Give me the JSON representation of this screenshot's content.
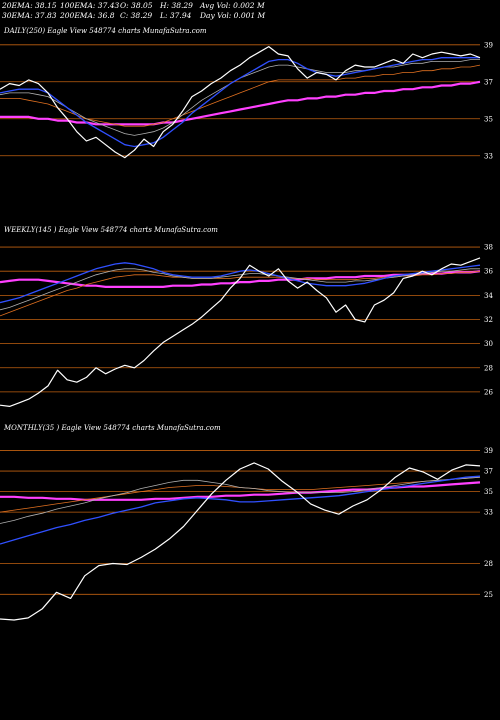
{
  "header": {
    "row1": [
      "20EMA: 38.15",
      "100EMA: 37.43",
      "O: 38.05",
      "H: 38.29",
      "Avg Vol: 0.002  M"
    ],
    "row2": [
      "30EMA: 37.83",
      "200EMA: 36.8",
      "C: 38.29",
      "L: 37.94",
      "Day Vol: 0.001 M"
    ]
  },
  "colors": {
    "price": "#ffffff",
    "ema_fast": "#3050ff",
    "ema_slow": "#ff40ff",
    "ma_a": "#b0b0b0",
    "ma_b": "#e07020",
    "grid": "#c06010"
  },
  "chart_data": [
    {
      "type": "line",
      "title": "DAILY(250) Eagle  View  548774  charts MunafaSutra.com",
      "yticks": [
        39,
        37,
        35,
        33
      ],
      "ylim": [
        32.5,
        39.8
      ],
      "series": [
        {
          "key": "price",
          "values": [
            36.6,
            36.9,
            36.8,
            37.1,
            36.9,
            36.4,
            35.6,
            35.0,
            34.3,
            33.8,
            34.0,
            33.6,
            33.2,
            32.9,
            33.3,
            33.9,
            33.5,
            34.3,
            34.7,
            35.4,
            36.2,
            36.5,
            36.9,
            37.2,
            37.6,
            37.9,
            38.3,
            38.6,
            38.9,
            38.5,
            38.4,
            37.7,
            37.2,
            37.5,
            37.4,
            37.1,
            37.6,
            37.9,
            37.8,
            37.8,
            38.0,
            38.2,
            38.0,
            38.5,
            38.3,
            38.5,
            38.6,
            38.5,
            38.4,
            38.5,
            38.3
          ]
        },
        {
          "key": "ema_fast",
          "values": [
            36.4,
            36.5,
            36.6,
            36.6,
            36.6,
            36.4,
            36.0,
            35.6,
            35.2,
            34.8,
            34.5,
            34.2,
            33.9,
            33.6,
            33.5,
            33.6,
            33.7,
            34.0,
            34.4,
            34.8,
            35.3,
            35.7,
            36.1,
            36.5,
            36.9,
            37.2,
            37.5,
            37.8,
            38.1,
            38.2,
            38.2,
            38.0,
            37.7,
            37.5,
            37.4,
            37.3,
            37.4,
            37.5,
            37.6,
            37.7,
            37.8,
            37.9,
            38.0,
            38.1,
            38.2,
            38.2,
            38.3,
            38.3,
            38.3,
            38.3,
            38.3
          ]
        },
        {
          "key": "ma_a",
          "values": [
            36.3,
            36.4,
            36.4,
            36.4,
            36.3,
            36.2,
            35.9,
            35.6,
            35.3,
            35.0,
            34.8,
            34.6,
            34.4,
            34.2,
            34.1,
            34.2,
            34.3,
            34.5,
            34.8,
            35.2,
            35.6,
            36.0,
            36.3,
            36.6,
            36.9,
            37.2,
            37.4,
            37.6,
            37.8,
            37.9,
            37.9,
            37.8,
            37.7,
            37.6,
            37.5,
            37.5,
            37.5,
            37.6,
            37.6,
            37.7,
            37.8,
            37.8,
            37.9,
            38.0,
            38.0,
            38.1,
            38.1,
            38.1,
            38.1,
            38.2,
            38.2
          ]
        },
        {
          "key": "ma_b",
          "values": [
            36.1,
            36.1,
            36.1,
            36.0,
            35.9,
            35.8,
            35.6,
            35.4,
            35.2,
            35.0,
            34.9,
            34.8,
            34.7,
            34.6,
            34.6,
            34.6,
            34.7,
            34.8,
            35.0,
            35.2,
            35.4,
            35.6,
            35.8,
            36.0,
            36.2,
            36.4,
            36.6,
            36.8,
            37.0,
            37.1,
            37.1,
            37.1,
            37.1,
            37.1,
            37.1,
            37.1,
            37.2,
            37.2,
            37.3,
            37.3,
            37.4,
            37.4,
            37.5,
            37.5,
            37.6,
            37.6,
            37.7,
            37.7,
            37.8,
            37.8,
            37.9
          ]
        },
        {
          "key": "ema_slow",
          "values": [
            35.1,
            35.1,
            35.1,
            35.1,
            35.0,
            35.0,
            34.9,
            34.9,
            34.8,
            34.8,
            34.7,
            34.7,
            34.7,
            34.7,
            34.7,
            34.7,
            34.7,
            34.8,
            34.8,
            34.9,
            35.0,
            35.1,
            35.2,
            35.3,
            35.4,
            35.5,
            35.6,
            35.7,
            35.8,
            35.9,
            36.0,
            36.0,
            36.1,
            36.1,
            36.2,
            36.2,
            36.3,
            36.3,
            36.4,
            36.4,
            36.5,
            36.5,
            36.6,
            36.6,
            36.7,
            36.7,
            36.8,
            36.8,
            36.9,
            36.9,
            37.0
          ]
        }
      ]
    },
    {
      "type": "line",
      "title": "WEEKLY(145               ) Eagle   View  548774  charts MunafaSutra.com",
      "yticks": [
        38,
        36,
        34,
        32,
        30,
        28,
        26
      ],
      "ylim": [
        24.5,
        39
      ],
      "series": [
        {
          "key": "price",
          "values": [
            24.9,
            24.8,
            25.1,
            25.4,
            25.9,
            26.5,
            27.8,
            27.0,
            26.8,
            27.2,
            28.0,
            27.5,
            27.9,
            28.2,
            28.0,
            28.6,
            29.4,
            30.1,
            30.6,
            31.1,
            31.6,
            32.2,
            32.9,
            33.6,
            34.6,
            35.4,
            36.5,
            36.0,
            35.6,
            36.2,
            35.2,
            34.6,
            35.1,
            34.4,
            33.8,
            32.6,
            33.2,
            32.0,
            31.8,
            33.2,
            33.6,
            34.2,
            35.4,
            35.6,
            36.0,
            35.7,
            36.2,
            36.6,
            36.5,
            36.8,
            37.1
          ]
        },
        {
          "key": "ema_fast",
          "values": [
            33.4,
            33.6,
            33.8,
            34.1,
            34.4,
            34.7,
            35.0,
            35.3,
            35.6,
            35.9,
            36.2,
            36.4,
            36.6,
            36.7,
            36.6,
            36.4,
            36.2,
            35.9,
            35.7,
            35.6,
            35.5,
            35.5,
            35.5,
            35.6,
            35.8,
            36.0,
            36.1,
            36.0,
            35.8,
            35.6,
            35.4,
            35.2,
            35.0,
            34.9,
            34.8,
            34.8,
            34.8,
            34.9,
            35.0,
            35.2,
            35.4,
            35.6,
            35.7,
            35.8,
            35.9,
            36.0,
            36.1,
            36.2,
            36.3,
            36.4,
            36.5
          ]
        },
        {
          "key": "ma_a",
          "values": [
            32.8,
            33.0,
            33.3,
            33.6,
            33.9,
            34.2,
            34.5,
            34.8,
            35.1,
            35.4,
            35.7,
            35.9,
            36.1,
            36.2,
            36.2,
            36.1,
            35.9,
            35.8,
            35.6,
            35.5,
            35.4,
            35.4,
            35.4,
            35.5,
            35.6,
            35.7,
            35.8,
            35.8,
            35.7,
            35.6,
            35.5,
            35.4,
            35.3,
            35.2,
            35.1,
            35.1,
            35.1,
            35.2,
            35.2,
            35.3,
            35.4,
            35.5,
            35.6,
            35.7,
            35.8,
            35.9,
            36.0,
            36.0,
            36.1,
            36.2,
            36.2
          ]
        },
        {
          "key": "ma_b",
          "values": [
            32.3,
            32.6,
            32.9,
            33.2,
            33.5,
            33.8,
            34.1,
            34.4,
            34.6,
            34.9,
            35.1,
            35.3,
            35.5,
            35.6,
            35.7,
            35.7,
            35.7,
            35.6,
            35.5,
            35.5,
            35.4,
            35.4,
            35.4,
            35.4,
            35.4,
            35.5,
            35.5,
            35.5,
            35.5,
            35.5,
            35.4,
            35.4,
            35.4,
            35.3,
            35.3,
            35.3,
            35.3,
            35.3,
            35.4,
            35.4,
            35.5,
            35.5,
            35.6,
            35.6,
            35.7,
            35.7,
            35.8,
            35.8,
            35.9,
            35.9,
            36.0
          ]
        },
        {
          "key": "ema_slow",
          "values": [
            35.1,
            35.2,
            35.3,
            35.3,
            35.3,
            35.2,
            35.1,
            35.0,
            34.9,
            34.8,
            34.8,
            34.7,
            34.7,
            34.7,
            34.7,
            34.7,
            34.7,
            34.7,
            34.8,
            34.8,
            34.8,
            34.9,
            34.9,
            35.0,
            35.0,
            35.1,
            35.1,
            35.2,
            35.2,
            35.3,
            35.3,
            35.3,
            35.4,
            35.4,
            35.4,
            35.5,
            35.5,
            35.5,
            35.6,
            35.6,
            35.6,
            35.7,
            35.7,
            35.7,
            35.8,
            35.8,
            35.8,
            35.9,
            35.9,
            35.9,
            36.0
          ]
        }
      ]
    },
    {
      "type": "line",
      "title": "MONTHLY(35                 ) Eagle   View  548774  charts MunafaSutra.com",
      "yticks": [
        39,
        37,
        35,
        33,
        28,
        25
      ],
      "ylim": [
        22.5,
        41
      ],
      "series": [
        {
          "key": "price",
          "values": [
            22.6,
            22.5,
            22.7,
            23.6,
            25.2,
            24.6,
            26.8,
            27.8,
            28.0,
            27.9,
            28.6,
            29.4,
            30.4,
            31.6,
            33.2,
            34.8,
            36.1,
            37.2,
            37.8,
            37.2,
            36.0,
            35.0,
            33.8,
            33.2,
            32.8,
            33.6,
            34.2,
            35.2,
            36.4,
            37.3,
            36.9,
            36.2,
            37.1,
            37.6,
            37.5
          ]
        },
        {
          "key": "ema_fast",
          "values": [
            29.9,
            30.3,
            30.7,
            31.1,
            31.5,
            31.8,
            32.2,
            32.5,
            32.9,
            33.2,
            33.5,
            33.9,
            34.1,
            34.3,
            34.4,
            34.3,
            34.2,
            34.0,
            34.0,
            34.1,
            34.2,
            34.3,
            34.4,
            34.5,
            34.6,
            34.8,
            35.0,
            35.2,
            35.4,
            35.6,
            35.8,
            36.0,
            36.2,
            36.4,
            36.5
          ]
        },
        {
          "key": "ma_a",
          "values": [
            31.9,
            32.2,
            32.6,
            32.9,
            33.3,
            33.6,
            33.9,
            34.3,
            34.6,
            34.9,
            35.3,
            35.6,
            35.9,
            36.1,
            36.1,
            35.9,
            35.7,
            35.4,
            35.3,
            35.1,
            35.0,
            34.9,
            34.9,
            34.9,
            34.9,
            35.0,
            35.2,
            35.4,
            35.6,
            35.8,
            36.0,
            36.1,
            36.2,
            36.3,
            36.4
          ]
        },
        {
          "key": "ma_b",
          "values": [
            33.0,
            33.2,
            33.4,
            33.6,
            33.8,
            34.0,
            34.2,
            34.4,
            34.6,
            34.8,
            35.0,
            35.2,
            35.4,
            35.5,
            35.6,
            35.6,
            35.5,
            35.4,
            35.3,
            35.2,
            35.2,
            35.2,
            35.2,
            35.3,
            35.4,
            35.5,
            35.6,
            35.7,
            35.8,
            35.9,
            36.0,
            36.1,
            36.2,
            36.3,
            36.4
          ]
        },
        {
          "key": "ema_slow",
          "values": [
            34.5,
            34.5,
            34.4,
            34.4,
            34.3,
            34.3,
            34.2,
            34.2,
            34.2,
            34.2,
            34.2,
            34.3,
            34.3,
            34.4,
            34.5,
            34.5,
            34.6,
            34.6,
            34.7,
            34.7,
            34.8,
            34.9,
            34.9,
            35.0,
            35.1,
            35.2,
            35.2,
            35.3,
            35.4,
            35.5,
            35.5,
            35.6,
            35.7,
            35.8,
            35.9
          ]
        }
      ]
    }
  ]
}
